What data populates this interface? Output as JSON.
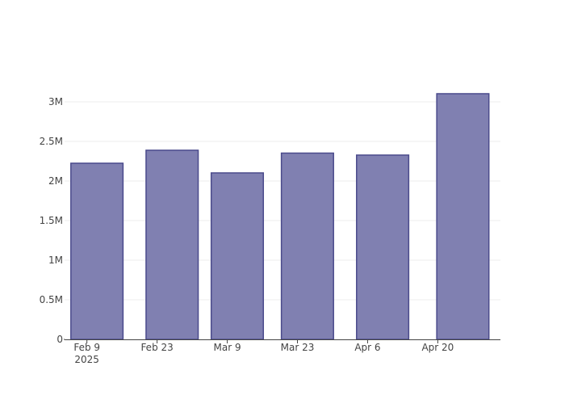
{
  "chart_data": {
    "type": "bar",
    "x": [
      "2025-02-11",
      "2025-02-26",
      "2025-03-11",
      "2025-03-25",
      "2025-04-09",
      "2025-04-25"
    ],
    "values": [
      2224000,
      2388000,
      2102000,
      2352000,
      2327000,
      3102000
    ],
    "color": "#8080b1",
    "line_color": "#4b4b8c",
    "xlim": [
      "2025-02-04T13:00",
      "2025-05-02T12:00"
    ],
    "xticks": [
      {
        "value": "2025-02-09",
        "label": "Feb 9\n2025"
      },
      {
        "value": "2025-02-23",
        "label": "Feb 23"
      },
      {
        "value": "2025-03-09",
        "label": "Mar 9"
      },
      {
        "value": "2025-03-23",
        "label": "Mar 23"
      },
      {
        "value": "2025-04-06",
        "label": "Apr 6"
      },
      {
        "value": "2025-04-20",
        "label": "Apr 20"
      }
    ],
    "bar_width_days": 10.4,
    "ylim": [
      0,
      3265000
    ],
    "yticks": [
      0,
      {
        "value": 500000,
        "label": "0.5M"
      },
      {
        "value": 1000000,
        "label": "1M"
      },
      {
        "value": 1500000,
        "label": "1.5M"
      },
      {
        "value": 2000000,
        "label": "2M"
      },
      {
        "value": 2500000,
        "label": "2.5M"
      },
      {
        "value": 3000000,
        "label": "3M"
      }
    ],
    "grid": true
  }
}
